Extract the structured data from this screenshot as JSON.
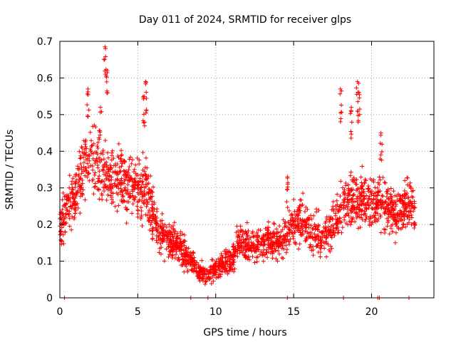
{
  "chart_data": {
    "type": "scatter",
    "title": "Day 011 of 2024, SRMTID for receiver glps",
    "xlabel": "GPS time / hours",
    "ylabel": "SRMTID / TECUs",
    "xlim": [
      0,
      24
    ],
    "ylim": [
      0,
      0.7
    ],
    "xticks": [
      0,
      5,
      10,
      15,
      20
    ],
    "yticks": [
      0,
      0.1,
      0.2,
      0.3,
      0.4,
      0.5,
      0.6,
      0.7
    ],
    "grid": true,
    "marker": "+",
    "color": "#ff0000",
    "trend": [
      [
        0.0,
        0.2
      ],
      [
        0.5,
        0.24
      ],
      [
        1.0,
        0.28
      ],
      [
        1.5,
        0.36
      ],
      [
        2.0,
        0.38
      ],
      [
        2.5,
        0.36
      ],
      [
        3.0,
        0.33
      ],
      [
        3.5,
        0.31
      ],
      [
        4.0,
        0.32
      ],
      [
        4.5,
        0.3
      ],
      [
        5.0,
        0.3
      ],
      [
        5.5,
        0.3
      ],
      [
        6.0,
        0.23
      ],
      [
        6.5,
        0.16
      ],
      [
        7.0,
        0.16
      ],
      [
        7.5,
        0.15
      ],
      [
        8.0,
        0.12
      ],
      [
        8.5,
        0.1
      ],
      [
        9.0,
        0.07
      ],
      [
        9.5,
        0.06
      ],
      [
        10.0,
        0.08
      ],
      [
        10.5,
        0.09
      ],
      [
        11.0,
        0.1
      ],
      [
        11.5,
        0.15
      ],
      [
        12.0,
        0.15
      ],
      [
        12.5,
        0.14
      ],
      [
        13.0,
        0.15
      ],
      [
        13.5,
        0.16
      ],
      [
        14.0,
        0.15
      ],
      [
        14.5,
        0.17
      ],
      [
        15.0,
        0.2
      ],
      [
        15.5,
        0.21
      ],
      [
        16.0,
        0.18
      ],
      [
        16.5,
        0.17
      ],
      [
        17.0,
        0.17
      ],
      [
        17.5,
        0.2
      ],
      [
        18.0,
        0.24
      ],
      [
        18.5,
        0.27
      ],
      [
        19.0,
        0.27
      ],
      [
        19.5,
        0.27
      ],
      [
        20.0,
        0.26
      ],
      [
        20.5,
        0.27
      ],
      [
        21.0,
        0.25
      ],
      [
        21.5,
        0.23
      ],
      [
        22.0,
        0.25
      ],
      [
        22.5,
        0.25
      ],
      [
        22.8,
        0.23
      ]
    ],
    "spikes": [
      {
        "x": 2.9,
        "y": 0.685
      },
      {
        "x": 3.05,
        "y": 0.62
      },
      {
        "x": 2.6,
        "y": 0.52
      },
      {
        "x": 1.8,
        "y": 0.57
      },
      {
        "x": 5.5,
        "y": 0.59
      },
      {
        "x": 5.4,
        "y": 0.55
      },
      {
        "x": 18.0,
        "y": 0.57
      },
      {
        "x": 19.1,
        "y": 0.59
      },
      {
        "x": 19.2,
        "y": 0.56
      },
      {
        "x": 18.7,
        "y": 0.52
      },
      {
        "x": 20.6,
        "y": 0.45
      },
      {
        "x": 14.6,
        "y": 0.33
      }
    ],
    "zero_points": [
      0.3,
      8.4,
      9.5,
      14.6,
      18.2,
      20.4,
      20.5,
      22.4
    ]
  }
}
